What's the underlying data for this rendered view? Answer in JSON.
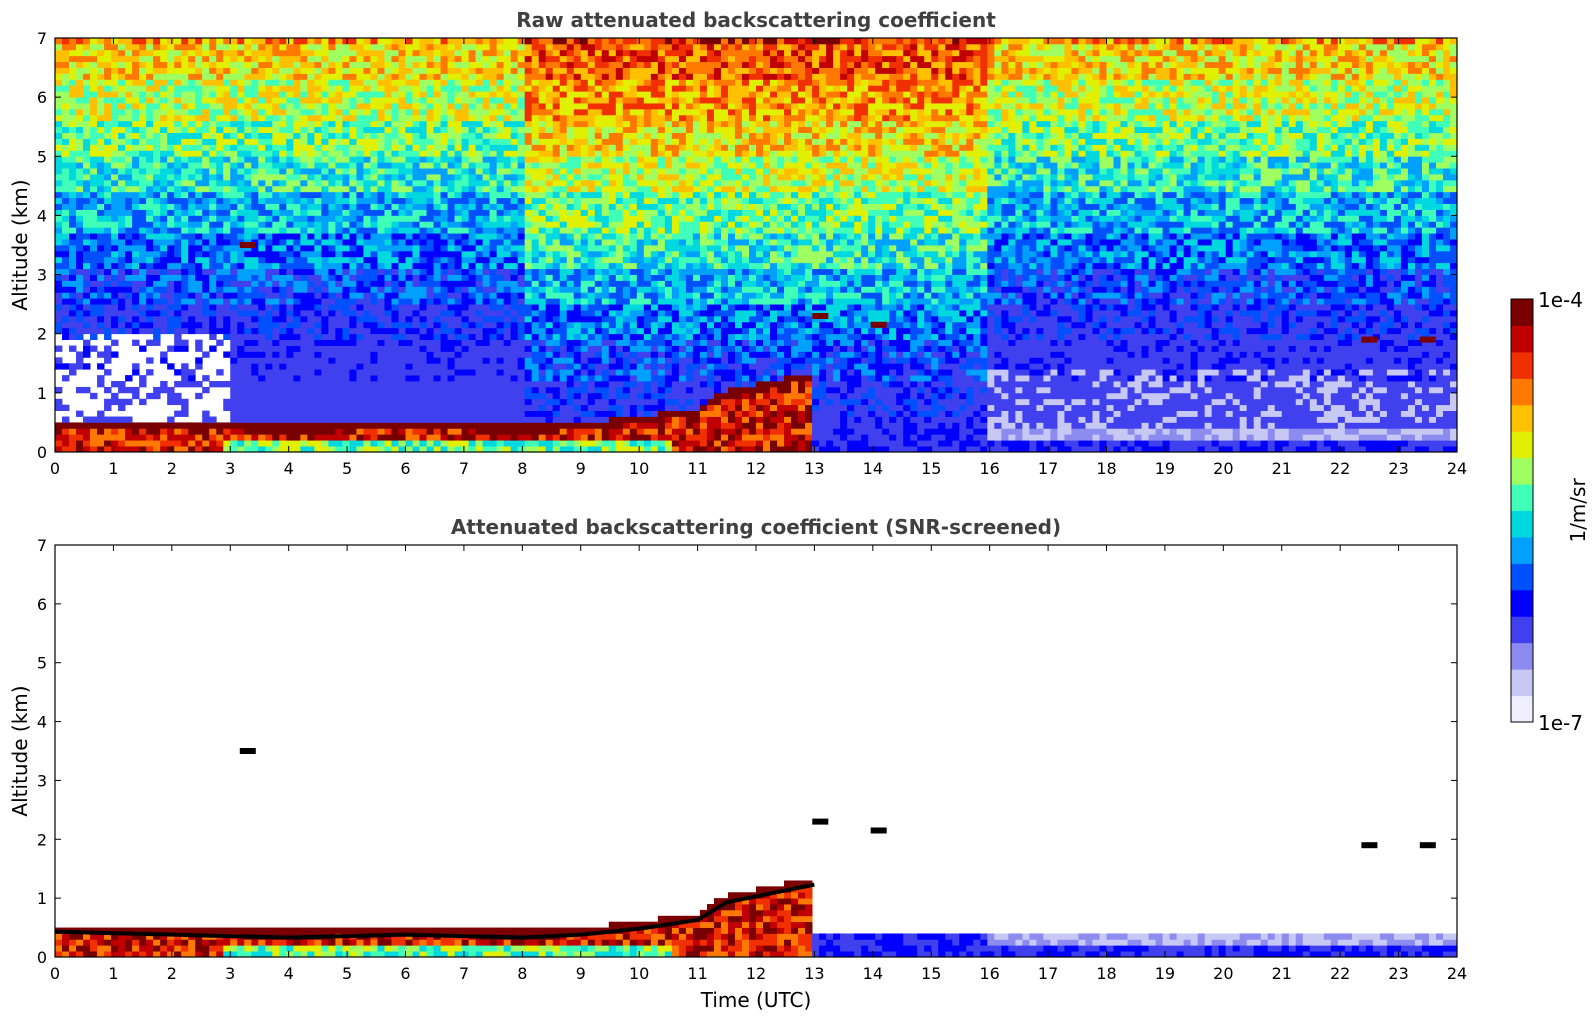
{
  "chart_data": [
    {
      "type": "heatmap",
      "title": "Raw attenuated backscattering coefficient",
      "xlabel": "",
      "ylabel": "Altitude (km)",
      "xlim": [
        0,
        24
      ],
      "ylim": [
        0,
        7
      ],
      "xticks": [
        0,
        1,
        2,
        3,
        4,
        5,
        6,
        7,
        8,
        9,
        10,
        11,
        12,
        13,
        14,
        15,
        16,
        17,
        18,
        19,
        20,
        21,
        22,
        23,
        24
      ],
      "yticks": [
        0,
        1,
        2,
        3,
        4,
        5,
        6,
        7
      ],
      "features": {
        "boundary_layer_top_km": [
          [
            0,
            0.55
          ],
          [
            2,
            0.5
          ],
          [
            4,
            0.45
          ],
          [
            6,
            0.5
          ],
          [
            8,
            0.45
          ],
          [
            9,
            0.5
          ],
          [
            10,
            0.6
          ],
          [
            11,
            0.75
          ],
          [
            11.5,
            1.05
          ],
          [
            12,
            1.15
          ],
          [
            13,
            1.35
          ]
        ],
        "elevated_layers": [
          [
            3.3,
            3.5
          ],
          [
            13.1,
            2.3
          ],
          [
            14.1,
            2.15
          ],
          [
            22.5,
            1.9
          ],
          [
            23.5,
            1.9
          ]
        ]
      }
    },
    {
      "type": "heatmap",
      "title": "Attenuated backscattering coefficient (SNR-screened)",
      "xlabel": "Time (UTC)",
      "ylabel": "Altitude (km)",
      "xlim": [
        0,
        24
      ],
      "ylim": [
        0,
        7
      ],
      "xticks": [
        0,
        1,
        2,
        3,
        4,
        5,
        6,
        7,
        8,
        9,
        10,
        11,
        12,
        13,
        14,
        15,
        16,
        17,
        18,
        19,
        20,
        21,
        22,
        23,
        24
      ],
      "yticks": [
        0,
        1,
        2,
        3,
        4,
        5,
        6,
        7
      ],
      "features": {
        "boundary_layer_top_km": [
          [
            0,
            0.55
          ],
          [
            2,
            0.5
          ],
          [
            4,
            0.45
          ],
          [
            6,
            0.5
          ],
          [
            8,
            0.45
          ],
          [
            9,
            0.5
          ],
          [
            10,
            0.6
          ],
          [
            11,
            0.75
          ],
          [
            11.5,
            1.05
          ],
          [
            12,
            1.15
          ],
          [
            13,
            1.35
          ]
        ],
        "elevated_layers": [
          [
            3.3,
            3.5
          ],
          [
            13.1,
            2.3
          ],
          [
            14.1,
            2.15
          ],
          [
            22.5,
            1.9
          ],
          [
            23.5,
            1.9
          ]
        ]
      }
    }
  ],
  "colorbar": {
    "label": "1/m/sr",
    "max_label": "1e-4",
    "min_label": "1e-7",
    "colormap": [
      "#eeeeff",
      "#c8c8f4",
      "#8c8cf0",
      "#4040ee",
      "#0000ff",
      "#0050ff",
      "#00a0ff",
      "#00d8e0",
      "#40ffb8",
      "#a0ff60",
      "#e0f000",
      "#ffc000",
      "#ff7800",
      "#f03000",
      "#c00000",
      "#780000"
    ]
  }
}
